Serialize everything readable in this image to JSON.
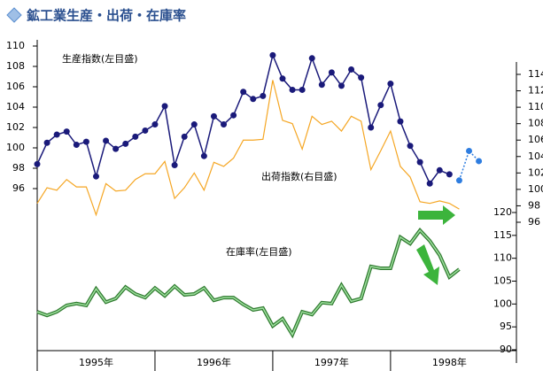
{
  "chart_data": {
    "type": "line",
    "title": "鉱工業生産・出荷・在庫率",
    "annotations": [
      "生産指数(左目盛)",
      "出荷指数(右目盛)",
      "在庫率(左目盛)"
    ],
    "xlabels": [
      "1995年",
      "1996年",
      "1997年",
      "1998年"
    ],
    "ylim": [
      96,
      110
    ],
    "yticks": [
      96,
      98,
      100,
      102,
      104,
      106,
      108,
      110
    ],
    "y2lim": [
      96,
      114
    ],
    "y2ticks": [
      96,
      98,
      100,
      102,
      104,
      106,
      108,
      110,
      112,
      114
    ],
    "y3lim": [
      90,
      120
    ],
    "y3ticks": [
      90,
      95,
      100,
      105,
      110,
      115,
      120
    ],
    "series": [
      {
        "color": "#1a1a7a",
        "markers": true,
        "axis": "y",
        "values": [
          98.4,
          100.5,
          101.3,
          101.6,
          100.3,
          100.6,
          97.2,
          100.7,
          99.9,
          100.4,
          101.1,
          101.7,
          102.3,
          104.1,
          98.3,
          101.1,
          102.3,
          99.2,
          103.1,
          102.3,
          103.2,
          105.5,
          104.8,
          105.1,
          109.1,
          106.8,
          105.7,
          105.7,
          108.8,
          106.2,
          107.4,
          106.1,
          107.7,
          106.9,
          102.0,
          104.2,
          106.3,
          102.6,
          100.2,
          98.6,
          96.5,
          97.8,
          97.4,
          null,
          null,
          null
        ]
      },
      {
        "color": "#2e7de0",
        "markers": true,
        "dotted": true,
        "axis": "y",
        "values": [
          null,
          null,
          null,
          null,
          null,
          null,
          null,
          null,
          null,
          null,
          null,
          null,
          null,
          null,
          null,
          null,
          null,
          null,
          null,
          null,
          null,
          null,
          null,
          null,
          null,
          null,
          null,
          null,
          null,
          null,
          null,
          null,
          null,
          null,
          null,
          null,
          null,
          null,
          null,
          null,
          null,
          null,
          null,
          96.8,
          99.7,
          98.7
        ]
      },
      {
        "color": "#f5a623",
        "markers": false,
        "axis": "y2",
        "values": [
          98.3,
          100.2,
          99.9,
          101.2,
          100.3,
          100.3,
          96.9,
          100.7,
          99.8,
          99.9,
          101.2,
          101.9,
          101.9,
          103.4,
          98.9,
          100.2,
          102.0,
          99.9,
          103.3,
          102.8,
          103.8,
          106.0,
          106.0,
          106.1,
          113.3,
          108.4,
          108.0,
          104.9,
          108.9,
          107.9,
          108.3,
          107.1,
          108.9,
          108.3,
          102.4,
          104.7,
          107.1,
          102.8,
          101.5,
          98.5,
          98.3,
          98.6,
          98.3,
          97.6
        ]
      },
      {
        "color": "#2f7a2f",
        "markers": false,
        "double": true,
        "axis": "y3",
        "values": [
          98.3,
          97.5,
          98.3,
          99.7,
          100.1,
          99.7,
          103.3,
          100.4,
          101.2,
          103.7,
          102.2,
          101.4,
          103.5,
          101.8,
          103.9,
          102.0,
          102.2,
          103.5,
          100.8,
          101.4,
          101.4,
          99.9,
          98.7,
          99.1,
          95.2,
          96.8,
          93.3,
          98.3,
          97.7,
          100.3,
          100.1,
          104.1,
          100.6,
          101.2,
          108.2,
          107.8,
          107.8,
          114.6,
          113.2,
          116.1,
          113.8,
          110.7,
          105.9,
          107.6
        ]
      }
    ]
  }
}
